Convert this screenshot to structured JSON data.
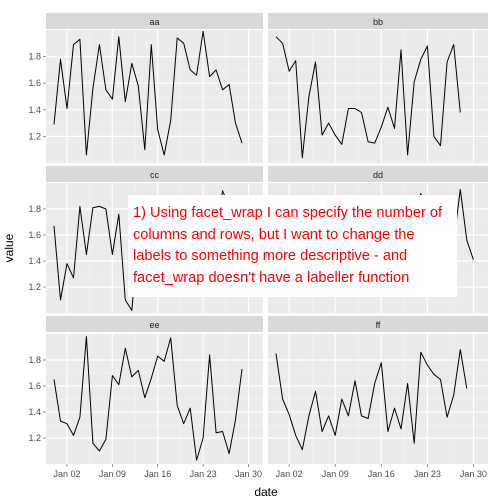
{
  "chart_data": {
    "type": "line",
    "facet_layout": "wrap 2 columns x 3 rows",
    "xlabel": "date",
    "ylabel": "value",
    "x": [
      "Dec 31",
      "Jan 01",
      "Jan 02",
      "Jan 03",
      "Jan 04",
      "Jan 05",
      "Jan 06",
      "Jan 07",
      "Jan 08",
      "Jan 09",
      "Jan 10",
      "Jan 11",
      "Jan 12",
      "Jan 13",
      "Jan 14",
      "Jan 15",
      "Jan 16",
      "Jan 17",
      "Jan 18",
      "Jan 19",
      "Jan 20",
      "Jan 21",
      "Jan 22",
      "Jan 23",
      "Jan 24",
      "Jan 25",
      "Jan 26",
      "Jan 27",
      "Jan 28",
      "Jan 29",
      "Jan 30",
      "Jan 31"
    ],
    "x_ticks": [
      "Jan 02",
      "Jan 09",
      "Jan 16",
      "Jan 23",
      "Jan 30"
    ],
    "y_ticks": [
      1.2,
      1.4,
      1.6,
      1.8
    ],
    "ylim": [
      1.0,
      2.0
    ],
    "grid": true,
    "line_color": "#000000",
    "panel_color": "#ebebeb",
    "strip_color": "#d9d9d9",
    "facets": [
      {
        "label": "aa",
        "values": [
          1.29,
          1.78,
          1.41,
          1.89,
          1.93,
          1.06,
          1.56,
          1.89,
          1.55,
          1.48,
          1.95,
          1.46,
          1.75,
          1.58,
          1.1,
          1.89,
          1.25,
          1.06,
          1.32,
          1.94,
          1.9,
          1.7,
          1.66,
          1.99,
          1.65,
          1.7,
          1.55,
          1.59,
          1.3,
          1.15
        ]
      },
      {
        "label": "bb",
        "values": [
          1.95,
          1.9,
          1.69,
          1.77,
          1.04,
          1.5,
          1.76,
          1.21,
          1.3,
          1.21,
          1.14,
          1.41,
          1.41,
          1.38,
          1.16,
          1.15,
          1.27,
          1.42,
          1.26,
          1.85,
          1.06,
          1.61,
          1.78,
          1.88,
          1.2,
          1.13,
          1.76,
          1.89,
          1.38
        ]
      },
      {
        "label": "cc",
        "values": [
          1.67,
          1.1,
          1.38,
          1.27,
          1.82,
          1.45,
          1.81,
          1.82,
          1.8,
          1.45,
          1.76,
          1.1,
          1.02,
          1.58,
          1.25,
          1.4,
          1.3,
          1.84,
          1.62,
          1.73,
          1.65,
          1.57,
          1.42,
          1.57,
          1.83,
          1.66,
          1.94,
          1.82,
          1.63,
          1.76
        ]
      },
      {
        "label": "dd",
        "values": [
          1.83,
          1.45,
          1.7,
          1.33,
          1.72,
          1.67,
          1.85,
          1.63,
          1.68,
          1.22,
          1.87,
          1.58,
          1.7,
          1.74,
          1.47,
          1.55,
          1.8,
          1.57,
          1.84,
          1.45,
          1.69,
          1.5,
          1.92,
          1.75,
          1.36,
          1.49,
          1.68,
          1.55,
          1.95,
          1.56,
          1.41
        ]
      },
      {
        "label": "ee",
        "values": [
          1.65,
          1.33,
          1.31,
          1.22,
          1.36,
          1.98,
          1.16,
          1.1,
          1.19,
          1.68,
          1.61,
          1.89,
          1.67,
          1.72,
          1.51,
          1.66,
          1.83,
          1.79,
          1.97,
          1.45,
          1.31,
          1.43,
          1.03,
          1.2,
          1.84,
          1.24,
          1.25,
          1.08,
          1.34,
          1.73
        ]
      },
      {
        "label": "ff",
        "values": [
          1.85,
          1.5,
          1.38,
          1.22,
          1.11,
          1.37,
          1.56,
          1.25,
          1.37,
          1.22,
          1.5,
          1.37,
          1.64,
          1.37,
          1.35,
          1.62,
          1.78,
          1.25,
          1.43,
          1.27,
          1.62,
          1.16,
          1.86,
          1.76,
          1.69,
          1.65,
          1.36,
          1.53,
          1.88,
          1.58
        ]
      }
    ]
  },
  "annotation": {
    "text": "1) Using facet_wrap I can specify the number of columns and rows, but I want to change the labels to something more descriptive - and facet_wrap doesn't have a labeller function",
    "color": "#ff0000"
  }
}
